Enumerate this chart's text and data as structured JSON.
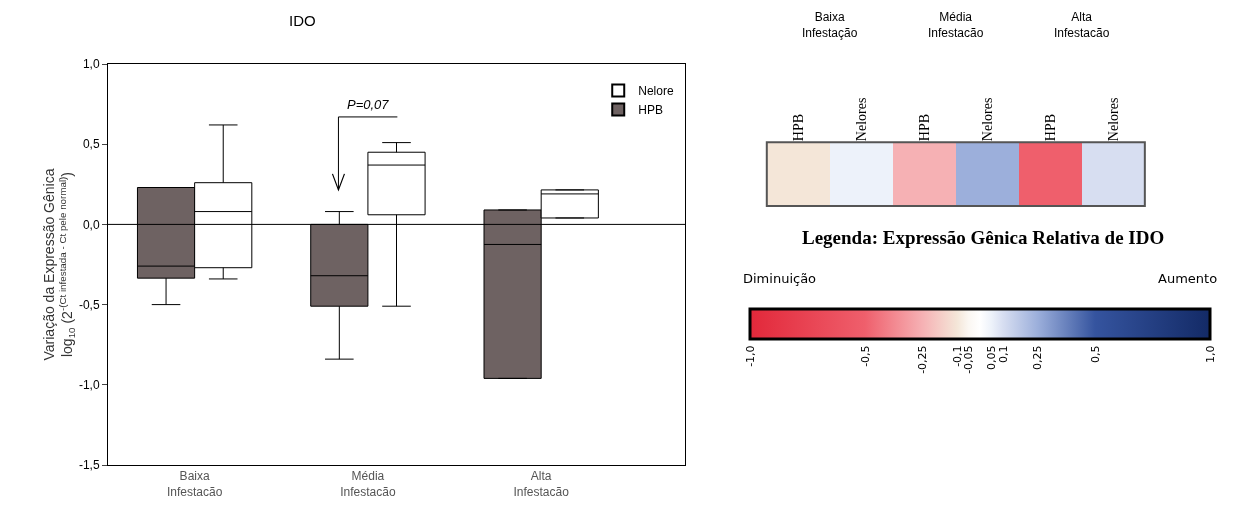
{
  "chart_data": [
    {
      "type": "box",
      "title": "IDO",
      "ylabel": "Variação da Expressão Gênica\nlog$_{10}$ (2$^{-(Ct infestada - Ct pele normal)}$)",
      "categories": [
        "Baixa\nInfestacão",
        "Média\nInfestacão",
        "Alta\nInfestacão"
      ],
      "series": [
        {
          "name": "HPB",
          "color": "#6e6262",
          "boxes": [
            {
              "low": -0.5,
              "q1": -0.335,
              "median": -0.26,
              "q3": 0.23,
              "high": 0.23
            },
            {
              "low": -0.84,
              "q1": -0.51,
              "median": -0.32,
              "q3": 0.0,
              "high": 0.08
            },
            {
              "low": -0.96,
              "q1": -0.96,
              "median": -0.125,
              "q3": 0.09,
              "high": 0.09
            }
          ]
        },
        {
          "name": "Nelore",
          "color": "#ffffff",
          "boxes": [
            {
              "low": -0.34,
              "q1": -0.27,
              "median": 0.08,
              "q3": 0.26,
              "high": 0.62
            },
            {
              "low": -0.51,
              "q1": 0.06,
              "median": 0.37,
              "q3": 0.45,
              "high": 0.51
            },
            {
              "low": 0.04,
              "q1": 0.04,
              "median": 0.19,
              "q3": 0.215,
              "high": 0.215
            }
          ]
        }
      ],
      "ylim": [
        -1.5,
        1.0
      ],
      "yticks": [
        {
          "value": 1.0,
          "label": "1,0"
        },
        {
          "value": 0.5,
          "label": "0,5"
        },
        {
          "value": 0.0,
          "label": "0,0"
        },
        {
          "value": -0.5,
          "label": "-0,5"
        },
        {
          "value": -1.0,
          "label": "-1,0"
        },
        {
          "value": -1.5,
          "label": "-1,5"
        }
      ],
      "ref_lines": [
        {
          "axis": "y",
          "value": 0
        }
      ],
      "annotations": [
        "P=0,07"
      ],
      "legend": "top right",
      "grid": false
    },
    {
      "type": "heatmap",
      "clabel": "Legenda: Expressão Gênica Relativa de IDO",
      "categories": [
        "HPB",
        "Nelores",
        "HPB",
        "Nelores",
        "HPB",
        "Nelores"
      ],
      "y_categories": [
        null
      ],
      "cells": [
        [
          -0.1,
          0.05,
          -0.25,
          0.25,
          -0.5,
          0.1
        ]
      ],
      "clim": [
        -1.0,
        1.0
      ],
      "cticks": [
        {
          "value": -0.05,
          "label": "-0,05"
        },
        {
          "value": -0.1,
          "label": "-0,1"
        },
        {
          "value": -0.25,
          "label": "-0,25"
        },
        {
          "value": -0.5,
          "label": "-0,5"
        },
        {
          "value": -1.0,
          "label": "-1,0"
        },
        {
          "value": 0.05,
          "label": "0,05"
        },
        {
          "value": 0.1,
          "label": "0,1"
        },
        {
          "value": 0.25,
          "label": "0,25"
        },
        {
          "value": 0.5,
          "label": "0,5"
        },
        {
          "value": 1.0,
          "label": "1,0"
        }
      ],
      "annotations": [
        "Baixa\nInfestação",
        "Média\nInfestacão",
        "Alta\nInfestacão",
        "Diminuição",
        "Aumento"
      ]
    }
  ]
}
